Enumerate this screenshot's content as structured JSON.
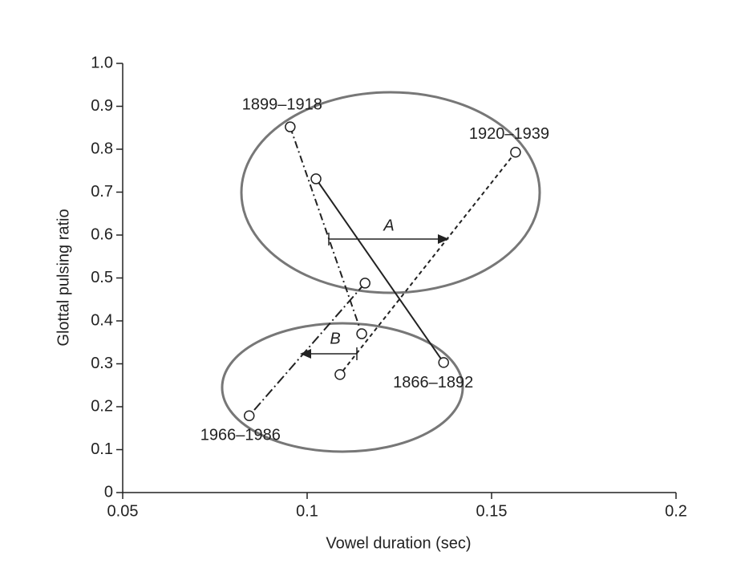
{
  "chart_data": {
    "type": "line",
    "x_label": "Vowel duration (sec)",
    "y_label": "Glottal pulsing ratio",
    "xlim": [
      0.05,
      0.2
    ],
    "xticks": [
      0.05,
      0.1,
      0.15,
      0.2
    ],
    "ylim": [
      0,
      1
    ],
    "yticks": [
      0,
      0.1,
      0.2,
      0.3,
      0.4,
      0.5,
      0.6,
      0.7,
      0.8,
      0.9,
      {
        "value": 1,
        "label": "1.0"
      }
    ],
    "series": [
      {
        "name": "1866–1892",
        "color": "#222222",
        "style": "solid",
        "x": [
          0.1024,
          0.137
        ],
        "y": [
          0.731,
          0.303
        ]
      },
      {
        "name": "1899–1918",
        "color": "#222222",
        "style": "dash-dot",
        "x": [
          0.0954,
          0.1148
        ],
        "y": [
          0.852,
          0.37
        ]
      },
      {
        "name": "1920–1939",
        "color": "#222222",
        "style": "dashed",
        "x": [
          0.1565,
          0.1089
        ],
        "y": [
          0.793,
          0.275
        ]
      },
      {
        "name": "1966–1986",
        "color": "#222222",
        "style": "long-dash-dot",
        "x": [
          0.1157,
          0.0843
        ],
        "y": [
          0.488,
          0.179
        ]
      }
    ],
    "annotations": [
      "A",
      "B"
    ]
  }
}
